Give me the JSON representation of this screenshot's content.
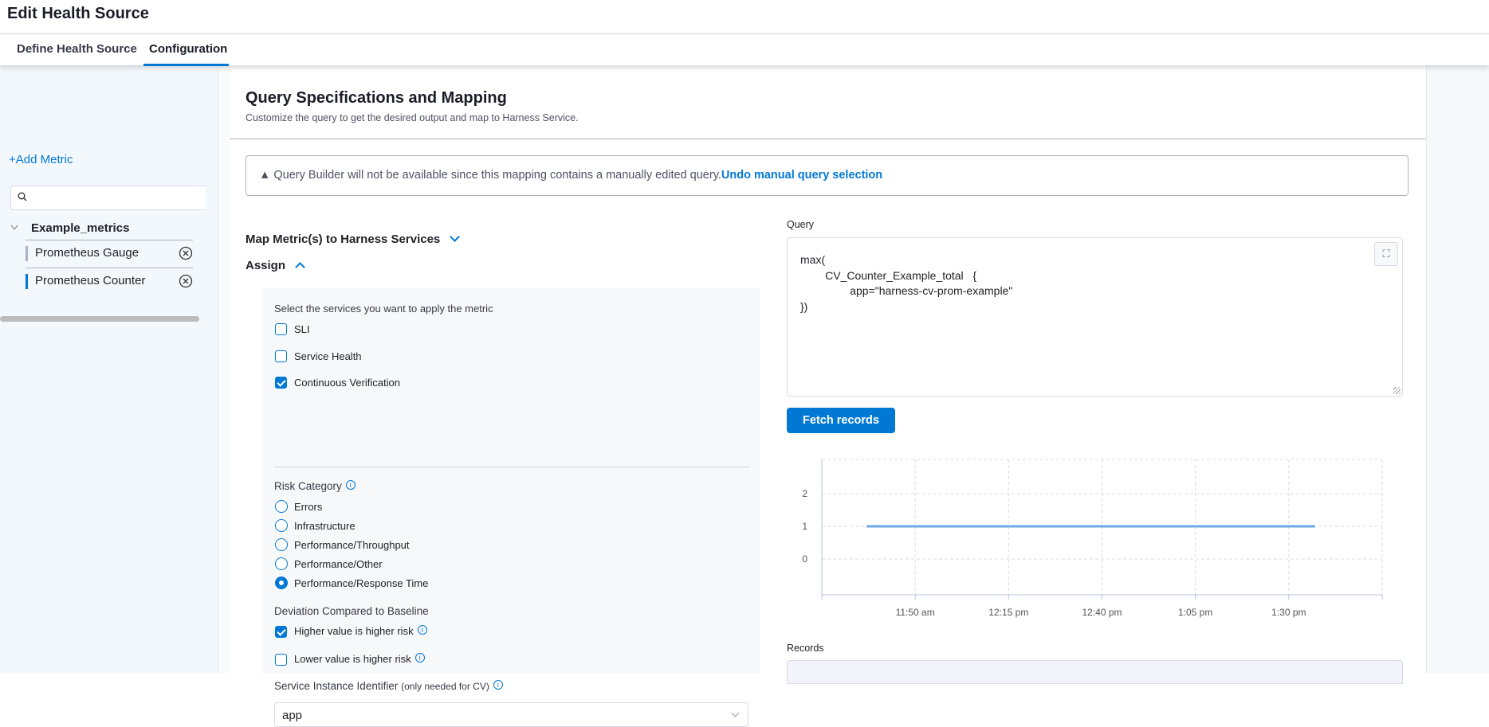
{
  "header": {
    "title": "Edit Health Source"
  },
  "tabs": [
    {
      "label": "Define Health Source",
      "active": false
    },
    {
      "label": "Configuration",
      "active": true
    }
  ],
  "sidebar": {
    "add_metric": "+Add Metric",
    "search_placeholder": "",
    "group": "Example_metrics",
    "items": [
      {
        "label": "Prometheus Gauge",
        "selected": false
      },
      {
        "label": "Prometheus Counter",
        "selected": true
      }
    ]
  },
  "main": {
    "title": "Query Specifications and Mapping",
    "subtitle": "Customize the query to get the desired output and map to Harness Service.",
    "warning": {
      "text": "Query Builder will not be available since this mapping contains a manually edited query.",
      "link": "Undo manual query selection"
    },
    "map_section": "Map Metric(s) to Harness Services",
    "assign_section": "Assign",
    "form": {
      "services_label": "Select the services you want to apply the metric",
      "services": [
        {
          "label": "SLI",
          "checked": false
        },
        {
          "label": "Service Health",
          "checked": false
        },
        {
          "label": "Continuous Verification",
          "checked": true
        }
      ],
      "risk_label": "Risk Category",
      "risk_options": [
        {
          "label": "Errors",
          "selected": false
        },
        {
          "label": "Infrastructure",
          "selected": false
        },
        {
          "label": "Performance/Throughput",
          "selected": false
        },
        {
          "label": "Performance/Other",
          "selected": false
        },
        {
          "label": "Performance/Response Time",
          "selected": true
        }
      ],
      "deviation_label": "Deviation Compared to Baseline",
      "deviation": [
        {
          "label": "Higher value is higher risk",
          "checked": true
        },
        {
          "label": "Lower value is higher risk",
          "checked": false
        }
      ],
      "sii_label": "Service Instance Identifier",
      "sii_hint": "(only needed for CV)",
      "sii_value": "app"
    },
    "query": {
      "label": "Query",
      "value": "max(\n        CV_Counter_Example_total   {\n                app=\"harness-cv-prom-example\"\n})"
    },
    "fetch_button": "Fetch records",
    "records_label": "Records"
  },
  "colors": {
    "accent": "#0278d5",
    "line": "#6ea8e6"
  },
  "chart_data": {
    "type": "line",
    "x_ticks": [
      "11:50 am",
      "12:15 pm",
      "12:40 pm",
      "1:05 pm",
      "1:30 pm"
    ],
    "x_tick_values": [
      "11:50",
      "12:15",
      "12:40",
      "13:05",
      "13:30"
    ],
    "xlim": [
      "11:25",
      "13:55"
    ],
    "y_ticks": [
      0,
      1,
      2
    ],
    "ylim": [
      -1.1,
      3.05
    ],
    "grid": true,
    "series": [
      {
        "points": [
          {
            "x": "11:37",
            "y": 1
          },
          {
            "x": "13:37",
            "y": 1
          }
        ]
      }
    ]
  }
}
